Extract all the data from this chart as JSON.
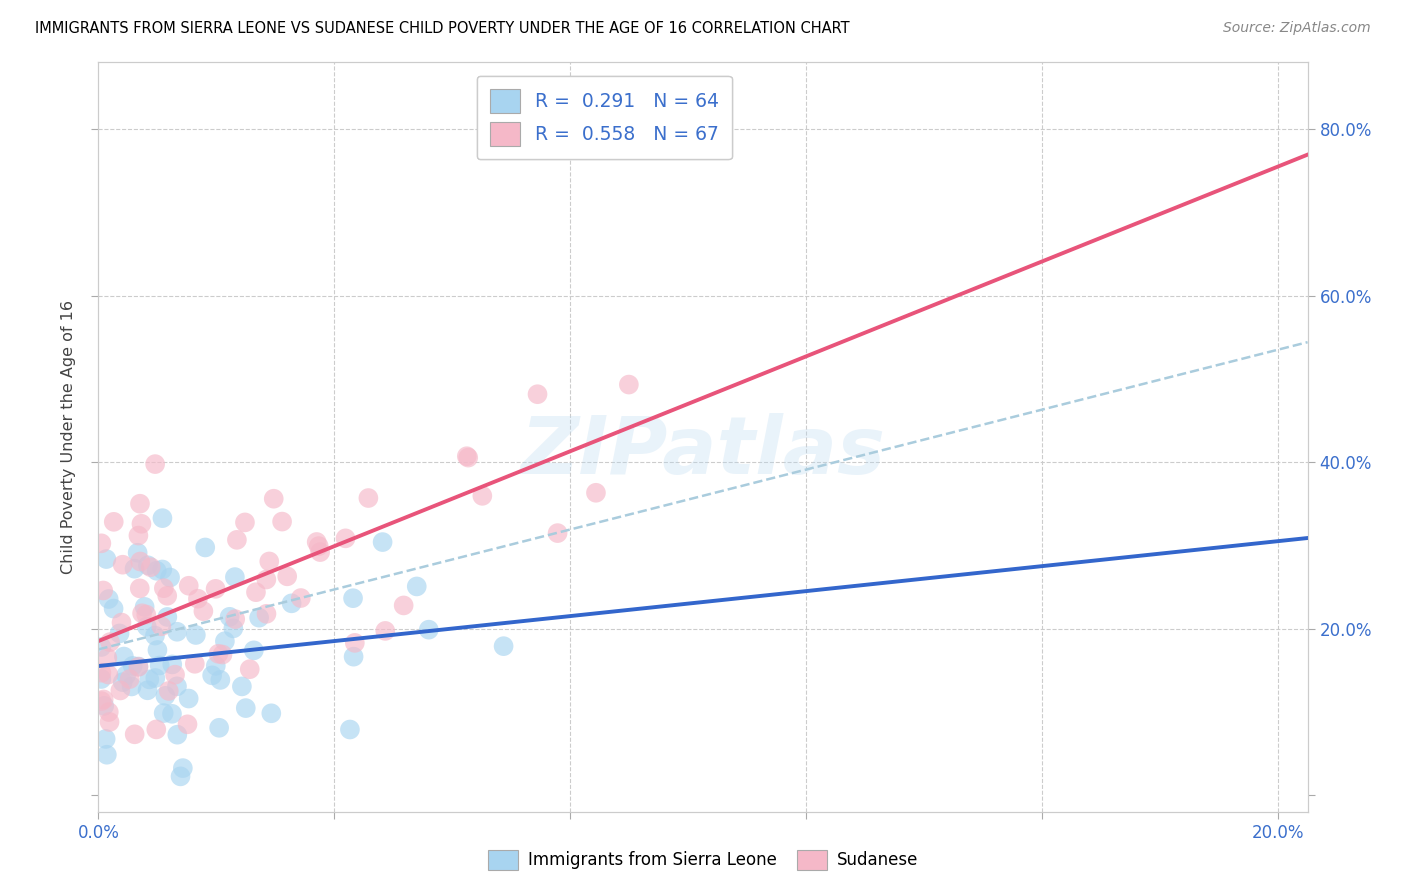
{
  "title": "IMMIGRANTS FROM SIERRA LEONE VS SUDANESE CHILD POVERTY UNDER THE AGE OF 16 CORRELATION CHART",
  "source": "Source: ZipAtlas.com",
  "ylabel": "Child Poverty Under the Age of 16",
  "xlim": [
    0.0,
    0.205
  ],
  "ylim": [
    -0.02,
    0.88
  ],
  "xtick_positions": [
    0.0,
    0.04,
    0.08,
    0.12,
    0.16,
    0.2
  ],
  "xticklabels": [
    "0.0%",
    "",
    "",
    "",
    "",
    "20.0%"
  ],
  "ytick_positions": [
    0.0,
    0.2,
    0.4,
    0.6,
    0.8
  ],
  "yticklabels_right": [
    "",
    "20.0%",
    "40.0%",
    "60.0%",
    "80.0%"
  ],
  "color_blue": "#A8D4F0",
  "color_pink": "#F5B8C8",
  "color_blue_line": "#3366CC",
  "color_pink_line": "#E8547A",
  "color_dashed": "#AACCDD",
  "watermark": "ZIPatlas",
  "R1": 0.291,
  "N1": 64,
  "R2": 0.558,
  "N2": 67,
  "legend_label1": "Immigrants from Sierra Leone",
  "legend_label2": "Sudanese",
  "blue_intercept": 0.155,
  "blue_slope": 0.75,
  "pink_intercept": 0.185,
  "pink_slope": 2.85,
  "dashed_intercept": 0.175,
  "dashed_slope": 1.8
}
